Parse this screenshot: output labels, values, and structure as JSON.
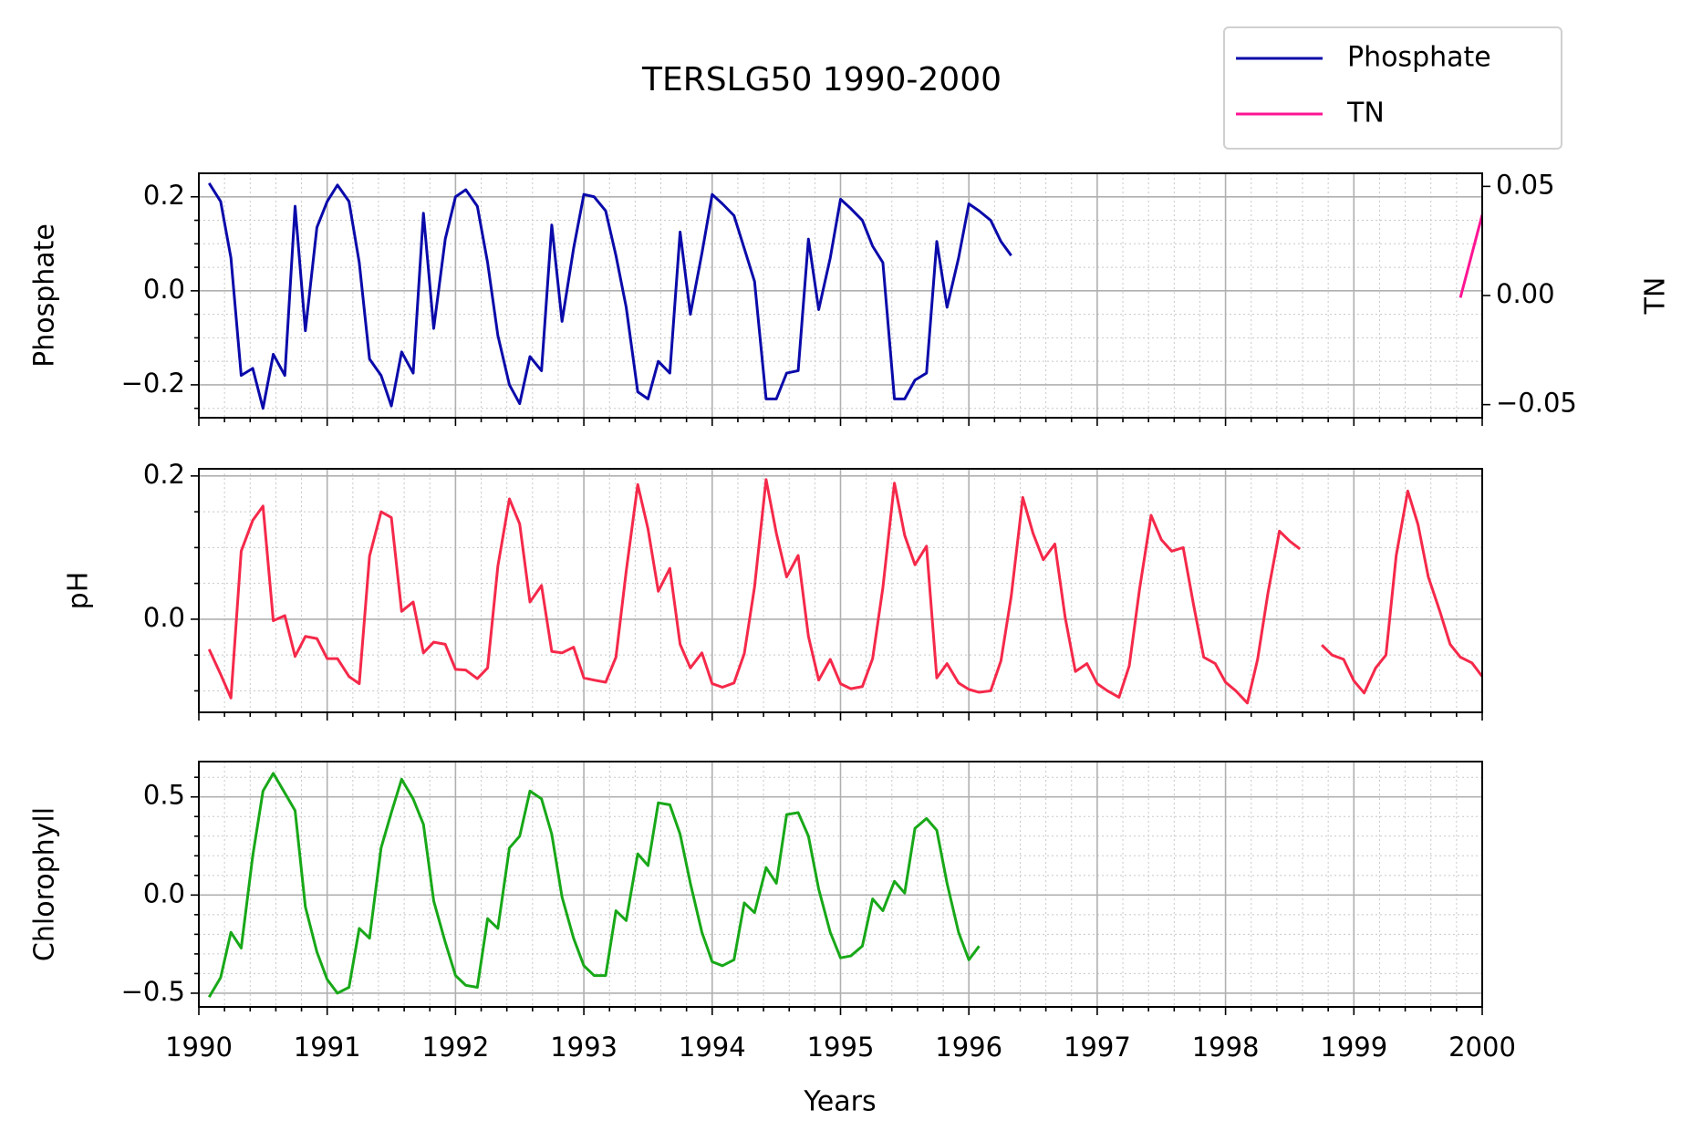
{
  "chart_data": {
    "type": "line",
    "title": "TERSLG50 1990-2000",
    "xlabel": "Years",
    "xlim": [
      1990,
      2000
    ],
    "xticks": [
      1990,
      1991,
      1992,
      1993,
      1994,
      1995,
      1996,
      1997,
      1998,
      1999,
      2000
    ],
    "grid": true,
    "minor_grid": true,
    "legend": "upper right",
    "panels": [
      {
        "ylabel": "Phosphate",
        "y2label": "TN",
        "ylim": [
          -0.27,
          0.25
        ],
        "yticks": [
          {
            "value": -0.2,
            "label": "−0.2"
          },
          {
            "value": 0,
            "label": "0.0"
          },
          0.2
        ],
        "y2lim": [
          -0.056,
          0.056
        ],
        "y2ticks": [
          {
            "value": -0.05,
            "label": "−0.05"
          },
          {
            "value": 0,
            "label": "0.00"
          },
          0.05
        ],
        "series": [
          {
            "name": "Phosphate",
            "color": "#0a0aaa",
            "x": [
              1990.08,
              1990.17,
              1990.25,
              1990.33,
              1990.42,
              1990.5,
              1990.58,
              1990.67,
              1990.75,
              1990.83,
              1990.92,
              1991.0,
              1991.08,
              1991.17,
              1991.25,
              1991.33,
              1991.42,
              1991.5,
              1991.58,
              1991.67,
              1991.75,
              1991.83,
              1991.92,
              1992.0,
              1992.08,
              1992.17,
              1992.25,
              1992.33,
              1992.42,
              1992.5,
              1992.58,
              1992.67,
              1992.75,
              1992.83,
              1992.92,
              1993.0,
              1993.08,
              1993.17,
              1993.25,
              1993.33,
              1993.42,
              1993.5,
              1993.58,
              1993.67,
              1993.75,
              1993.83,
              1993.92,
              1994.0,
              1994.08,
              1994.17,
              1994.25,
              1994.33,
              1994.42,
              1994.5,
              1994.58,
              1994.67,
              1994.75,
              1994.83,
              1994.92,
              1995.0,
              1995.08,
              1995.17,
              1995.25,
              1995.33,
              1995.42,
              1995.5,
              1995.58,
              1995.67,
              1995.75,
              1995.83,
              1995.92,
              1996.0,
              1996.08,
              1996.17,
              1996.25,
              1996.33
            ],
            "values": [
              0.229,
              0.19,
              0.07,
              -0.18,
              -0.165,
              -0.25,
              -0.135,
              -0.18,
              0.18,
              -0.085,
              0.135,
              0.19,
              0.225,
              0.19,
              0.06,
              -0.145,
              -0.18,
              -0.245,
              -0.13,
              -0.175,
              0.165,
              -0.08,
              0.11,
              0.2,
              0.215,
              0.18,
              0.06,
              -0.095,
              -0.2,
              -0.24,
              -0.14,
              -0.17,
              0.14,
              -0.065,
              0.09,
              0.205,
              0.2,
              0.17,
              0.075,
              -0.035,
              -0.215,
              -0.23,
              -0.15,
              -0.175,
              0.125,
              -0.05,
              0.08,
              0.205,
              0.185,
              0.16,
              0.09,
              0.02,
              -0.23,
              -0.23,
              -0.175,
              -0.17,
              0.11,
              -0.04,
              0.07,
              0.195,
              0.175,
              0.15,
              0.095,
              0.06,
              -0.23,
              -0.23,
              -0.19,
              -0.175,
              0.105,
              -0.035,
              0.07,
              0.185,
              0.17,
              0.15,
              0.105,
              0.075
            ]
          },
          {
            "name": "TN",
            "color": "#ff1493",
            "axis": "y2",
            "x": [
              1999.83,
              2000.0
            ],
            "values": [
              -0.001,
              0.037
            ]
          }
        ]
      },
      {
        "ylabel": "pH",
        "ylim": [
          -0.13,
          0.21
        ],
        "yticks": [
          {
            "value": 0,
            "label": "0.0"
          },
          0.2
        ],
        "series": [
          {
            "name": "pH",
            "color": "#f5294a",
            "x": [
              1990.08,
              1990.17,
              1990.25,
              1990.33,
              1990.42,
              1990.5,
              1990.58,
              1990.67,
              1990.75,
              1990.83,
              1990.92,
              1991.0,
              1991.08,
              1991.17,
              1991.25,
              1991.33,
              1991.42,
              1991.5,
              1991.58,
              1991.67,
              1991.75,
              1991.83,
              1991.92,
              1992.0,
              1992.08,
              1992.17,
              1992.25,
              1992.33,
              1992.42,
              1992.5,
              1992.58,
              1992.67,
              1992.75,
              1992.83,
              1992.92,
              1993.0,
              1993.08,
              1993.17,
              1993.25,
              1993.33,
              1993.42,
              1993.5,
              1993.58,
              1993.67,
              1993.75,
              1993.83,
              1993.92,
              1994.0,
              1994.08,
              1994.17,
              1994.25,
              1994.33,
              1994.42,
              1994.5,
              1994.58,
              1994.67,
              1994.75,
              1994.83,
              1994.92,
              1995.0,
              1995.08,
              1995.17,
              1995.25,
              1995.33,
              1995.42,
              1995.5,
              1995.58,
              1995.67,
              1995.75,
              1995.83,
              1995.92,
              1996.0,
              1996.08,
              1996.17,
              1996.25,
              1996.33,
              1996.42,
              1996.5,
              1996.58,
              1996.67,
              1996.75,
              1996.83,
              1996.92,
              1997.0,
              1997.08,
              1997.17,
              1997.25,
              1997.33,
              1997.42,
              1997.5,
              1997.58,
              1997.67,
              1997.75,
              1997.83,
              1997.92,
              1998.0,
              1998.08,
              1998.17,
              1998.25,
              1998.33,
              1998.42,
              1998.5,
              1998.58,
              1998.67,
              1998.75,
              1998.83,
              1998.92,
              1999.0,
              1999.08,
              1999.17,
              1999.25,
              1999.33,
              1999.42,
              1999.5,
              1999.58,
              1999.67,
              1999.75,
              1999.83,
              1999.92,
              2000.0
            ],
            "values": [
              -0.042,
              -0.077,
              -0.11,
              0.095,
              0.138,
              0.158,
              -0.002,
              0.005,
              -0.052,
              -0.024,
              -0.027,
              -0.055,
              -0.055,
              -0.08,
              -0.09,
              0.088,
              0.15,
              0.142,
              0.011,
              0.024,
              -0.047,
              -0.032,
              -0.035,
              -0.07,
              -0.071,
              -0.083,
              -0.068,
              0.074,
              0.168,
              0.133,
              0.024,
              0.047,
              -0.045,
              -0.047,
              -0.039,
              -0.082,
              -0.085,
              -0.088,
              -0.053,
              0.067,
              0.188,
              0.126,
              0.039,
              0.071,
              -0.035,
              -0.068,
              -0.047,
              -0.09,
              -0.095,
              -0.089,
              -0.048,
              0.045,
              0.195,
              0.12,
              0.059,
              0.089,
              -0.024,
              -0.085,
              -0.056,
              -0.09,
              -0.097,
              -0.094,
              -0.055,
              0.044,
              0.19,
              0.117,
              0.076,
              0.102,
              -0.082,
              -0.062,
              -0.089,
              -0.098,
              -0.102,
              -0.1,
              -0.058,
              0.032,
              0.17,
              0.12,
              0.083,
              0.105,
              0.003,
              -0.073,
              -0.062,
              -0.09,
              -0.1,
              -0.109,
              -0.065,
              0.042,
              0.145,
              0.111,
              0.095,
              0.1,
              0.021,
              -0.053,
              -0.062,
              -0.088,
              -0.1,
              -0.117,
              -0.056,
              0.036,
              0.123,
              0.109,
              0.098,
              null,
              -0.036,
              -0.05,
              -0.056,
              -0.086,
              -0.103,
              -0.068,
              -0.05,
              0.089,
              0.179,
              0.132,
              0.059,
              0.011,
              -0.035,
              -0.053,
              -0.061,
              -0.08
            ]
          }
        ]
      },
      {
        "ylabel": "Chlorophyll",
        "ylim": [
          -0.57,
          0.68
        ],
        "yticks": [
          {
            "value": -0.5,
            "label": "−0.5"
          },
          {
            "value": 0,
            "label": "0.0"
          },
          0.5
        ],
        "series": [
          {
            "name": "Chlorophyll",
            "color": "#18a818",
            "x": [
              1990.08,
              1990.17,
              1990.25,
              1990.33,
              1990.42,
              1990.5,
              1990.58,
              1990.67,
              1990.75,
              1990.83,
              1990.92,
              1991.0,
              1991.08,
              1991.17,
              1991.25,
              1991.33,
              1991.42,
              1991.5,
              1991.58,
              1991.67,
              1991.75,
              1991.83,
              1991.92,
              1992.0,
              1992.08,
              1992.17,
              1992.25,
              1992.33,
              1992.42,
              1992.5,
              1992.58,
              1992.67,
              1992.75,
              1992.83,
              1992.92,
              1993.0,
              1993.08,
              1993.17,
              1993.25,
              1993.33,
              1993.42,
              1993.5,
              1993.58,
              1993.67,
              1993.75,
              1993.83,
              1993.92,
              1994.0,
              1994.08,
              1994.17,
              1994.25,
              1994.33,
              1994.42,
              1994.5,
              1994.58,
              1994.67,
              1994.75,
              1994.83,
              1994.92,
              1995.0,
              1995.08,
              1995.17,
              1995.25,
              1995.33,
              1995.42,
              1995.5,
              1995.58,
              1995.67,
              1995.75,
              1995.83,
              1995.92,
              1996.0,
              1996.08
            ],
            "values": [
              -0.52,
              -0.42,
              -0.19,
              -0.27,
              0.2,
              0.53,
              0.62,
              0.52,
              0.43,
              -0.06,
              -0.29,
              -0.43,
              -0.5,
              -0.47,
              -0.17,
              -0.22,
              0.24,
              0.42,
              0.59,
              0.49,
              0.36,
              -0.03,
              -0.24,
              -0.41,
              -0.46,
              -0.47,
              -0.12,
              -0.17,
              0.24,
              0.3,
              0.53,
              0.49,
              0.31,
              -0.01,
              -0.22,
              -0.36,
              -0.41,
              -0.41,
              -0.08,
              -0.13,
              0.21,
              0.15,
              0.47,
              0.46,
              0.31,
              0.06,
              -0.19,
              -0.34,
              -0.36,
              -0.33,
              -0.04,
              -0.09,
              0.14,
              0.06,
              0.41,
              0.42,
              0.3,
              0.03,
              -0.19,
              -0.32,
              -0.31,
              -0.26,
              -0.02,
              -0.08,
              0.07,
              0.01,
              0.34,
              0.39,
              0.33,
              0.06,
              -0.19,
              -0.33,
              -0.26
            ]
          }
        ]
      }
    ]
  }
}
